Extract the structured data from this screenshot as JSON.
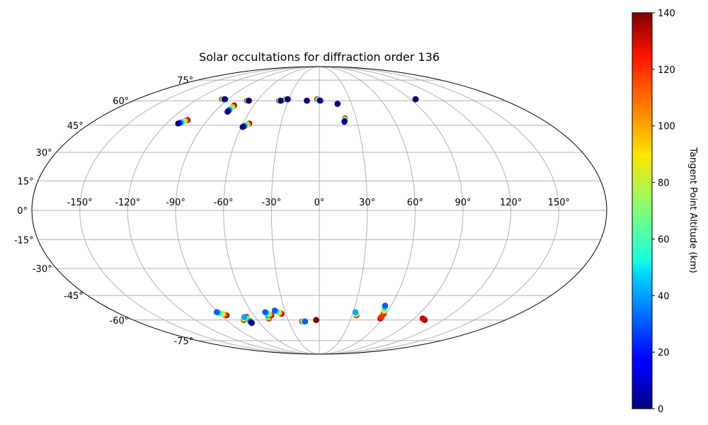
{
  "chart_data": {
    "type": "scatter",
    "projection": "mollweide",
    "title": "Solar occultations for diffraction order 136",
    "grid": true,
    "longitude_ticks": [
      "-150°",
      "-120°",
      "-90°",
      "-60°",
      "-30°",
      "0°",
      "30°",
      "60°",
      "90°",
      "120°",
      "150°"
    ],
    "longitude_tick_values": [
      -150,
      -120,
      -90,
      -60,
      -30,
      0,
      30,
      60,
      90,
      120,
      150
    ],
    "latitude_ticks": [
      "75°",
      "60°",
      "45°",
      "30°",
      "15°",
      "0°",
      "-15°",
      "-30°",
      "-45°",
      "-60°",
      "-75°"
    ],
    "latitude_tick_values": [
      75,
      60,
      45,
      30,
      15,
      0,
      -15,
      -30,
      -45,
      -60,
      -75
    ],
    "colorbar": {
      "label": "Tangent Point Altitude (km)",
      "colormap": "jet",
      "range": [
        0,
        140
      ],
      "ticks": [
        "0",
        "20",
        "40",
        "60",
        "80",
        "100",
        "120",
        "140"
      ],
      "tick_values": [
        0,
        20,
        40,
        60,
        80,
        100,
        120,
        140
      ]
    },
    "occultations": [
      {
        "lon_start": -93,
        "lat_start": 61,
        "lon_end": -96,
        "lat_end": 61,
        "alt_start": 0,
        "alt_end": 140
      },
      {
        "lon_start": -68,
        "lat_start": 60,
        "lon_end": -70,
        "lat_end": 60,
        "alt_start": 0,
        "alt_end": 140
      },
      {
        "lon_start": -79,
        "lat_start": 53,
        "lon_end": -78,
        "lat_end": 57,
        "alt_start": 0,
        "alt_end": 140
      },
      {
        "lon_start": -111,
        "lat_start": 46,
        "lon_end": -106,
        "lat_end": 48,
        "alt_start": 0,
        "alt_end": 140
      },
      {
        "lon_start": -59,
        "lat_start": 44,
        "lon_end": -55,
        "lat_end": 46,
        "alt_start": 0,
        "alt_end": 140
      },
      {
        "lon_start": -37,
        "lat_start": 60,
        "lon_end": -39,
        "lat_end": 60,
        "alt_start": 0,
        "alt_end": 140
      },
      {
        "lon_start": -31,
        "lat_start": 61,
        "lon_end": -33,
        "lat_end": 61,
        "alt_start": 0,
        "alt_end": 140
      },
      {
        "lon_start": -12,
        "lat_start": 60,
        "lon_end": -12,
        "lat_end": 60,
        "alt_start": 0,
        "alt_end": 0
      },
      {
        "lon_start": 1,
        "lat_start": 60,
        "lon_end": -2,
        "lat_end": 61,
        "alt_start": 0,
        "alt_end": 140
      },
      {
        "lon_start": 17,
        "lat_start": 58,
        "lon_end": 17,
        "lat_end": 58,
        "alt_start": 0,
        "alt_end": 0
      },
      {
        "lon_start": 20,
        "lat_start": 47,
        "lon_end": 21,
        "lat_end": 49,
        "alt_start": 0,
        "alt_end": 140
      },
      {
        "lon_start": 95,
        "lat_start": 61,
        "lon_end": 95,
        "lat_end": 61,
        "alt_start": 0,
        "alt_end": 0
      },
      {
        "lon_start": -91,
        "lat_start": -55,
        "lon_end": -85,
        "lat_end": -57,
        "alt_start": 30,
        "alt_end": 140
      },
      {
        "lon_start": -68,
        "lat_start": -62,
        "lon_end": -68,
        "lat_end": -58,
        "alt_start": 0,
        "alt_end": 140
      },
      {
        "lon_start": -70,
        "lat_start": -58,
        "lon_end": -73,
        "lat_end": -60,
        "alt_start": 40,
        "alt_end": 140
      },
      {
        "lon_start": -47,
        "lat_start": -57,
        "lon_end": -48,
        "lat_end": -59,
        "alt_start": 40,
        "alt_end": 140
      },
      {
        "lon_start": -48,
        "lat_start": -55,
        "lon_end": -44,
        "lat_end": -57,
        "alt_start": 30,
        "alt_end": 140
      },
      {
        "lon_start": -39,
        "lat_start": -54,
        "lon_end": -34,
        "lat_end": -56,
        "alt_start": 30,
        "alt_end": 140
      },
      {
        "lon_start": -14,
        "lat_start": -61,
        "lon_end": -17,
        "lat_end": -61,
        "alt_start": 30,
        "alt_end": 140
      },
      {
        "lon_start": -3,
        "lat_start": -60,
        "lon_end": -3,
        "lat_end": -60,
        "alt_start": 140,
        "alt_end": 140
      },
      {
        "lon_start": 32,
        "lat_start": -55,
        "lon_end": 34,
        "lat_end": -57,
        "alt_start": 40,
        "alt_end": 140
      },
      {
        "lon_start": 55,
        "lat_start": -51,
        "lon_end": 58,
        "lat_end": -56,
        "alt_start": 30,
        "alt_end": 140
      },
      {
        "lon_start": 58,
        "lat_start": -58,
        "lon_end": 58,
        "lat_end": -59,
        "alt_start": 120,
        "alt_end": 140
      },
      {
        "lon_start": 98,
        "lat_start": -59,
        "lon_end": 102,
        "lat_end": -60,
        "alt_start": 130,
        "alt_end": 140
      }
    ]
  }
}
